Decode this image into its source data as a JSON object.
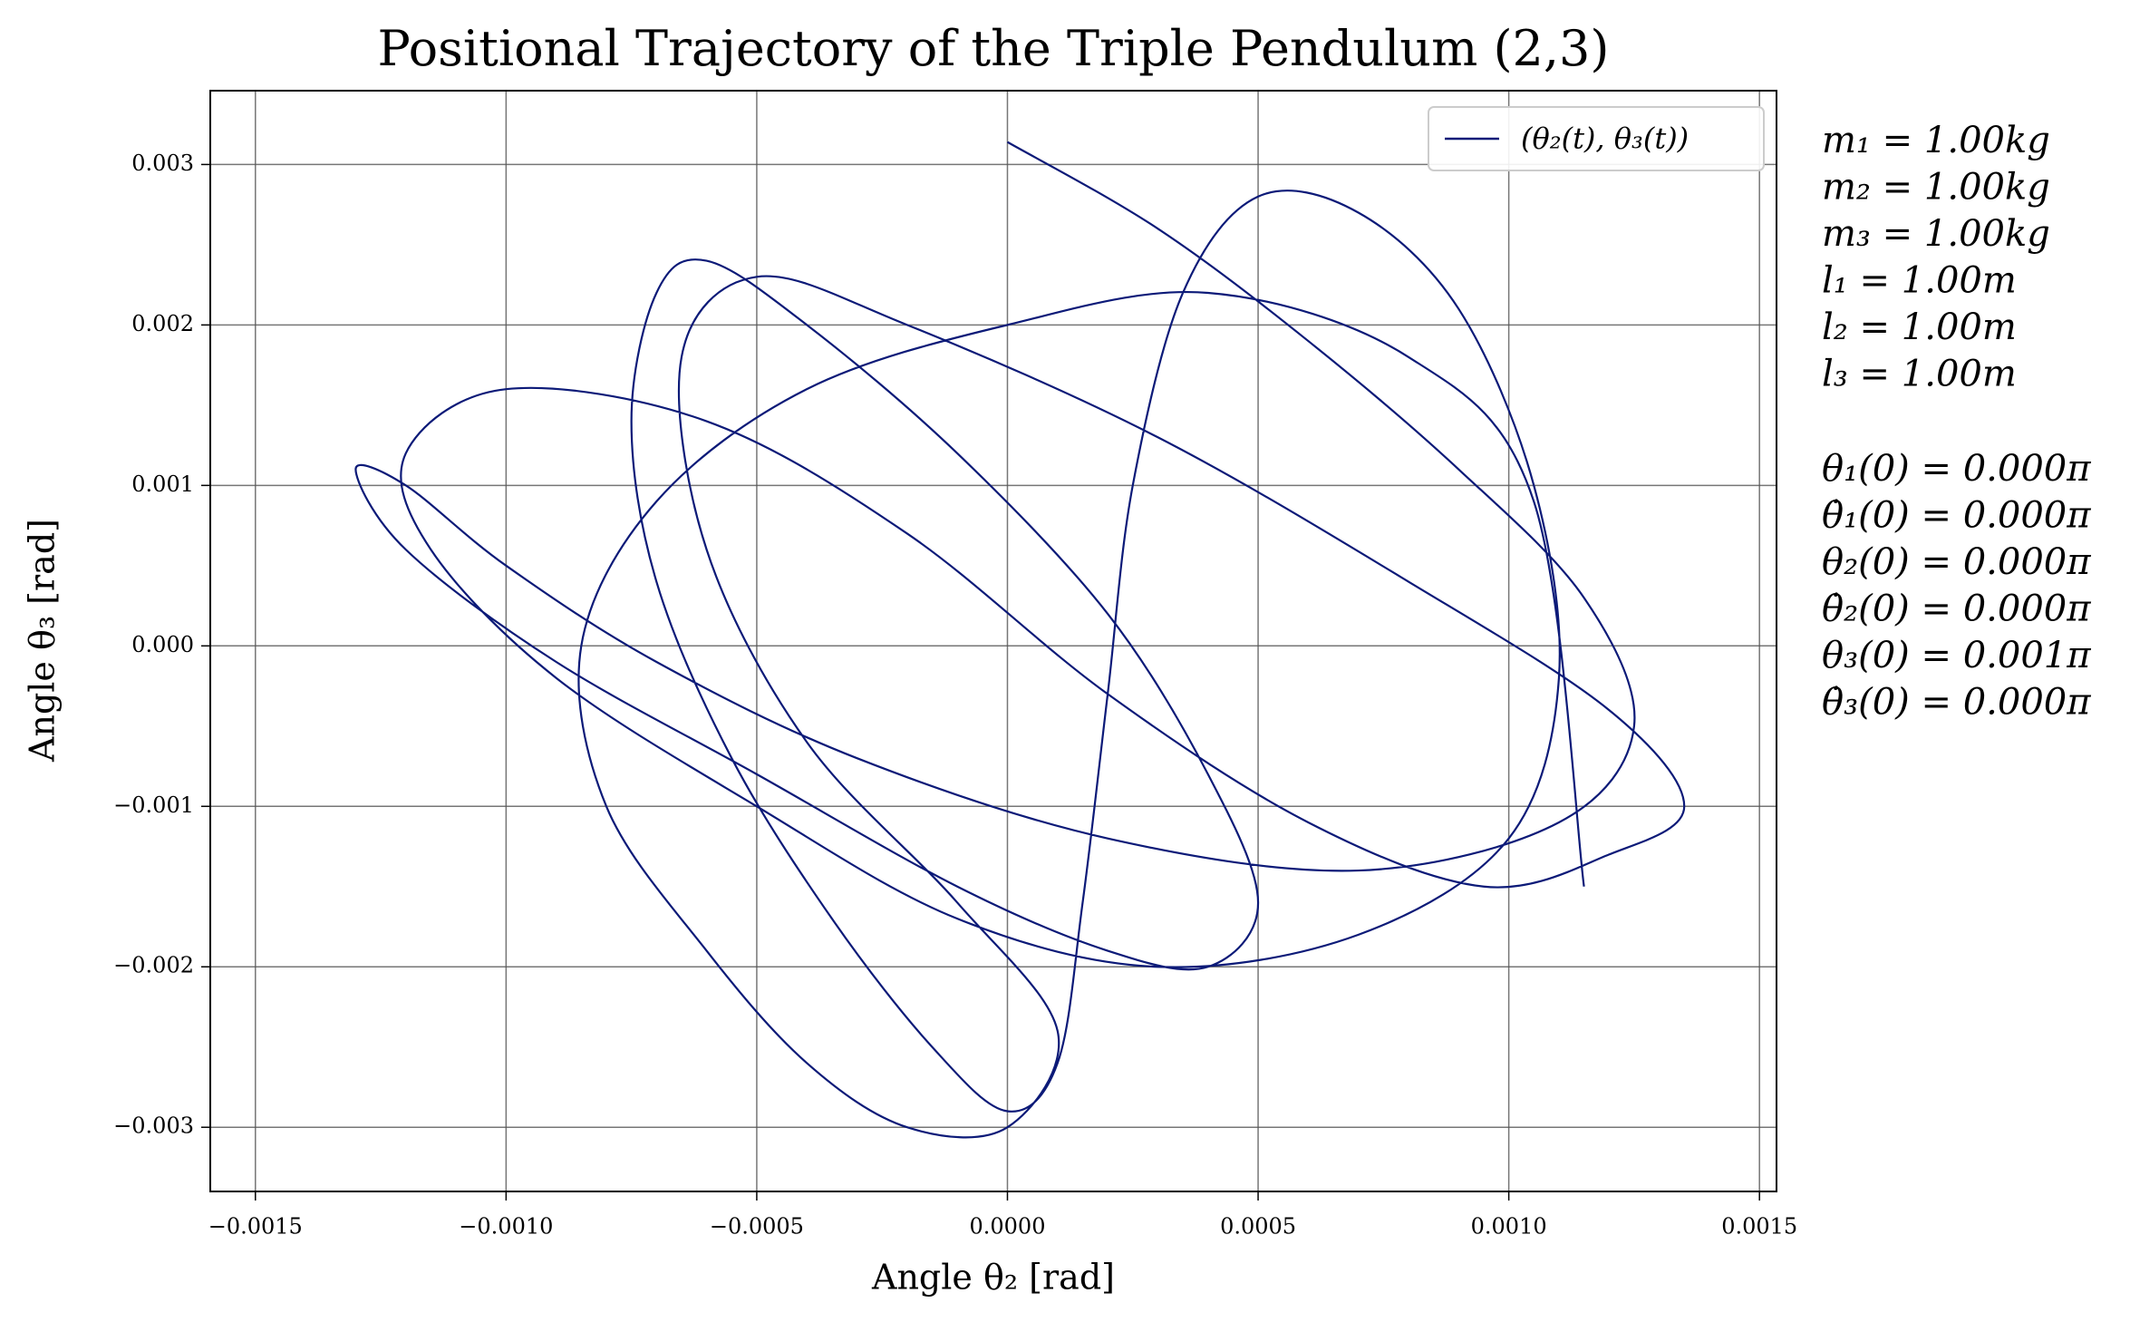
{
  "chart_data": {
    "type": "line",
    "title": "Positional Trajectory of the Triple Pendulum (2,3)",
    "xlabel": "Angle θ₂ [rad]",
    "ylabel": "Angle θ₃ [rad]",
    "x": [
      0,
      0.0003,
      0.0006,
      0.0009,
      0.00115,
      0.00125,
      0.0011,
      0.0007,
      0.0002,
      -0.0003,
      -0.0007,
      -0.001,
      -0.0012,
      -0.0013,
      -0.0012,
      -0.0009,
      -0.0005,
      -0.0001,
      0.0002,
      0.0004,
      0.0005,
      0.0004,
      0.0002,
      -0.0001,
      -0.0004,
      -0.0006,
      -0.0007,
      -0.00075,
      -0.0007,
      -0.00055,
      -0.00035,
      -0.00015,
      0,
      0.0001,
      0.00015,
      0.0002,
      0.00025,
      0.00035,
      0.0005,
      0.0007,
      0.0009,
      0.00105,
      0.0011,
      0.001,
      0.0007,
      0.0003,
      -0.0001,
      -0.0005,
      -0.0009,
      -0.00115,
      -0.0012,
      -0.001,
      -0.0006,
      -0.0002,
      0.0002,
      0.0006,
      0.00095,
      0.0012,
      0.00135,
      0.0012,
      0.0008,
      0.0003,
      -0.0002,
      -0.0005,
      -0.00065,
      -0.0006,
      -0.0004,
      -0.0001,
      0.0001,
      0,
      -0.0002,
      -0.0004,
      -0.0006,
      -0.0008,
      -0.00085,
      -0.0007,
      -0.0004,
      0,
      0.0004,
      0.0008,
      0.00105,
      0.00115
    ],
    "series": [
      {
        "name": "(θ₂(t), θ₃(t))",
        "color": "#0c1a78",
        "values": [
          0.00314,
          0.0026,
          0.0019,
          0.0011,
          0.0003,
          -0.0005,
          -0.0011,
          -0.0014,
          -0.0012,
          -0.0007,
          -0.0001,
          0.0005,
          0.001,
          0.0011,
          0.0006,
          -0.0001,
          -0.0008,
          -0.0015,
          -0.0019,
          -0.002,
          -0.0016,
          -0.0008,
          0.0002,
          0.0012,
          0.002,
          0.0024,
          0.0022,
          0.0014,
          0.0004,
          -0.0007,
          -0.0017,
          -0.0025,
          -0.0029,
          -0.0026,
          -0.0016,
          -0.0003,
          0.001,
          0.0022,
          0.0028,
          0.0027,
          0.0021,
          0.001,
          -0.0002,
          -0.0012,
          -0.0018,
          -0.002,
          -0.0017,
          -0.001,
          -0.0002,
          0.0006,
          0.0012,
          0.0016,
          0.0014,
          0.0007,
          -0.0003,
          -0.0011,
          -0.0015,
          -0.0013,
          -0.001,
          -0.0004,
          0.0004,
          0.0013,
          0.002,
          0.0023,
          0.0018,
          0.0006,
          -0.0006,
          -0.0016,
          -0.0024,
          -0.003,
          -0.003,
          -0.0026,
          -0.0019,
          -0.001,
          0,
          0.0009,
          0.0016,
          0.002,
          0.0022,
          0.0018,
          0.0009,
          -0.0015
        ]
      }
    ],
    "xlim": [
      -0.00159,
      0.001534
    ],
    "ylim": [
      -0.0034,
      0.00346
    ],
    "xticks": [
      {
        "value": -0.0015,
        "label": "−0.0015"
      },
      {
        "value": -0.001,
        "label": "−0.0010"
      },
      {
        "value": -0.0005,
        "label": "−0.0005"
      },
      {
        "value": 0,
        "label": "0.0000"
      },
      {
        "value": 0.0005,
        "label": "0.0005"
      },
      {
        "value": 0.001,
        "label": "0.0010"
      },
      {
        "value": 0.0015,
        "label": "0.0015"
      }
    ],
    "yticks": [
      {
        "value": -0.003,
        "label": "−0.003"
      },
      {
        "value": -0.002,
        "label": "−0.002"
      },
      {
        "value": -0.001,
        "label": "−0.001"
      },
      {
        "value": 0,
        "label": "0.000"
      },
      {
        "value": 0.001,
        "label": "0.001"
      },
      {
        "value": 0.002,
        "label": "0.002"
      },
      {
        "value": 0.003,
        "label": "0.003"
      }
    ],
    "grid": true,
    "legend": "upper right",
    "annotations": [
      "m₁ = 1.00kg",
      "m₂ = 1.00kg",
      "m₃ = 1.00kg",
      "l₁ = 1.00m",
      "l₂ = 1.00m",
      "l₃ = 1.00m",
      "θ₁(0) = 0.000π",
      "θ̇₁(0) = 0.000π",
      "θ₂(0) = 0.000π",
      "θ̇₂(0) = 0.000π",
      "θ₃(0) = 0.001π",
      "θ̇₃(0) = 0.000π"
    ]
  }
}
